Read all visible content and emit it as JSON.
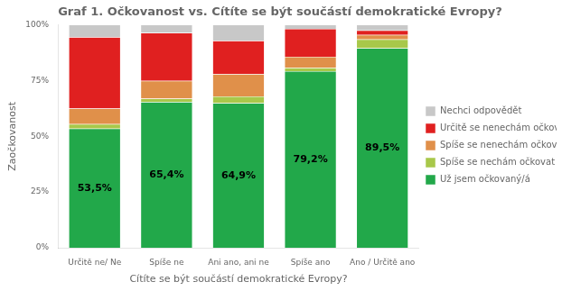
{
  "chart_data": {
    "type": "bar",
    "stacked": true,
    "title": "Graf 1. Očkovanost vs. Cítíte se být součástí demokratické Evropy?",
    "x_label": "Cítíte se být součástí demokratické Evropy?",
    "y_label": "Zaočkovanost",
    "categories": [
      "Určitě ne/ Ne",
      "Spíše ne",
      "Ani ano, ani ne",
      "Spíše ano",
      "Ano / Určitě ano"
    ],
    "series": [
      {
        "name": "Už jsem očkovaný/á",
        "color": "#22A84A",
        "values": [
          53.5,
          65.4,
          64.9,
          79.2,
          89.5
        ],
        "data_labels": true,
        "value_labels": [
          "53,5%",
          "65,4%",
          "64,9%",
          "79,2%",
          "89,5%"
        ]
      },
      {
        "name": "Spíše se nechám očkovat",
        "color": "#A8C84A",
        "values": [
          2.0,
          1.5,
          3.0,
          1.5,
          4.0
        ]
      },
      {
        "name": "Spíše se nenechám očkovat",
        "color": "#E0904A",
        "values": [
          7.0,
          8.0,
          10.0,
          5.0,
          2.0
        ]
      },
      {
        "name": "Určitě se nenechám očkovat",
        "color": "#E02020",
        "values": [
          32.0,
          21.5,
          15.0,
          12.5,
          2.0
        ]
      },
      {
        "name": "Nechci odpovědět",
        "color": "#C8C8C8",
        "values": [
          5.5,
          3.6,
          7.1,
          1.8,
          2.5
        ]
      }
    ],
    "ylim": [
      0,
      100
    ],
    "yticks": [
      {
        "value": 0,
        "label": "0%"
      },
      {
        "value": 25,
        "label": "25%"
      },
      {
        "value": 50,
        "label": "50%"
      },
      {
        "value": 75,
        "label": "75%"
      },
      {
        "value": 100,
        "label": "100%"
      }
    ],
    "grid": false,
    "legend": "right"
  }
}
